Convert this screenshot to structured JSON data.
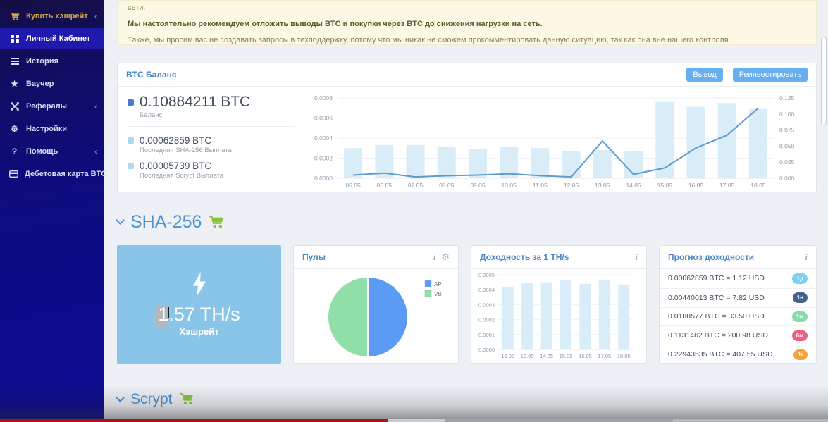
{
  "sidebar": {
    "items": [
      {
        "label": "Купить хэшрейт",
        "has_submenu": true
      },
      {
        "label": "Личный Кабинет",
        "active": true
      },
      {
        "label": "История"
      },
      {
        "label": "Ваучер"
      },
      {
        "label": "Рефералы",
        "has_submenu": true
      },
      {
        "label": "Настройки"
      },
      {
        "label": "Помощь",
        "has_submenu": true
      },
      {
        "label": "Дебетовая карта BTC"
      }
    ]
  },
  "notice": {
    "line1": "сети.",
    "line2": "Мы настоятельно рекомендуем отложить выводы BTC и покупки через BTC до снижения нагрузки на сеть.",
    "line3": "Также, мы просим вас не создавать запросы в техподдержку, потому что мы никак не сможем прокомментировать данную ситуацию, так как она вне нашего контроля."
  },
  "balance_panel": {
    "title": "BTC Баланс",
    "withdraw_button": "Вывод",
    "reinvest_button": "Реинвестировать",
    "stats": [
      {
        "value": "0.10884211 BTC",
        "label": "Баланс"
      },
      {
        "value": "0.00062859 BTC",
        "label": "Последняя SHA-256 Выплата"
      },
      {
        "value": "0.00005739 BTC",
        "label": "Последняя Scrypt Выплата"
      }
    ]
  },
  "sha256_section": {
    "title": "SHA-256"
  },
  "scrypt_section": {
    "title": "Scrypt"
  },
  "hashrate_card": {
    "value": "1.57 TH/s",
    "label": "Хэшрейт"
  },
  "pools_panel": {
    "title": "Пулы"
  },
  "profit_panel": {
    "title": "Доходность за 1 TH/s"
  },
  "forecast_panel": {
    "title": "Прогноз доходности",
    "rows": [
      {
        "text": "0.00062859 BTC = 1.12 USD",
        "badge": "1д",
        "badge_color": "#7ccfee"
      },
      {
        "text": "0.00440013 BTC = 7.82 USD",
        "badge": "1н",
        "badge_color": "#47618e"
      },
      {
        "text": "0.0188577 BTC = 33.50 USD",
        "badge": "1м",
        "badge_color": "#87d9a5"
      },
      {
        "text": "0.1131462 BTC = 200.98 USD",
        "badge": "6м",
        "badge_color": "#ef5e87"
      },
      {
        "text": "0.22943535 BTC = 407.55 USD",
        "badge": "1г",
        "badge_color": "#f2a33c"
      }
    ]
  },
  "chart_data": [
    {
      "type": "combo",
      "title": "BTC Баланс — выплаты (бары, левая ось) и баланс (линия, правая ось)",
      "categories": [
        "05.05",
        "06.05",
        "07.05",
        "08.05",
        "09.05",
        "10.05",
        "11.05",
        "12.05",
        "13.05",
        "14.05",
        "15.05",
        "16.05",
        "17.05",
        "18.05"
      ],
      "series": [
        {
          "name": "daily-payout-bars",
          "kind": "bar",
          "axis": "left",
          "values": [
            0.0003,
            0.00033,
            0.00033,
            0.00031,
            0.00029,
            0.00031,
            0.0003,
            0.00027,
            0.00028,
            0.00027,
            0.00076,
            0.00071,
            0.00075,
            0.00069
          ]
        },
        {
          "name": "balance-line",
          "kind": "line",
          "axis": "right",
          "values": [
            0.005,
            0.008,
            0.002,
            0.004,
            0.005,
            0.007,
            0.004,
            0.002,
            0.058,
            0.006,
            0.016,
            0.047,
            0.067,
            0.109
          ]
        }
      ],
      "left_axis": {
        "ticks": [
          "0.0000",
          "0.0002",
          "0.0004",
          "0.0006",
          "0.0008"
        ],
        "max": 0.0008
      },
      "right_axis": {
        "ticks": [
          "0.000",
          "0.025",
          "0.050",
          "0.075",
          "0.100",
          "0.125"
        ],
        "max": 0.125
      },
      "bar_color": "#d9edf9",
      "line_color": "#5e9ace",
      "grid": true
    },
    {
      "type": "pie",
      "title": "Пулы",
      "slices": [
        {
          "label": "AP",
          "value": 50,
          "color": "#5b9bf5"
        },
        {
          "label": "VB",
          "value": 50,
          "color": "#90dfa8"
        }
      ],
      "legend_position": "right"
    },
    {
      "type": "bar",
      "title": "Доходность за 1 TH/s",
      "categories": [
        "12.05",
        "13.05",
        "14.05",
        "15.05",
        "16.05",
        "17.05",
        "18.05"
      ],
      "values": [
        0.00042,
        0.000445,
        0.00045,
        0.000465,
        0.00044,
        0.000465,
        0.000435
      ],
      "ylim": [
        0,
        0.0005
      ],
      "ticks": [
        "0.0000",
        "0.0001",
        "0.0002",
        "0.0003",
        "0.0004",
        "0.0005"
      ],
      "bar_color": "#d9edf9",
      "grid": true
    }
  ]
}
